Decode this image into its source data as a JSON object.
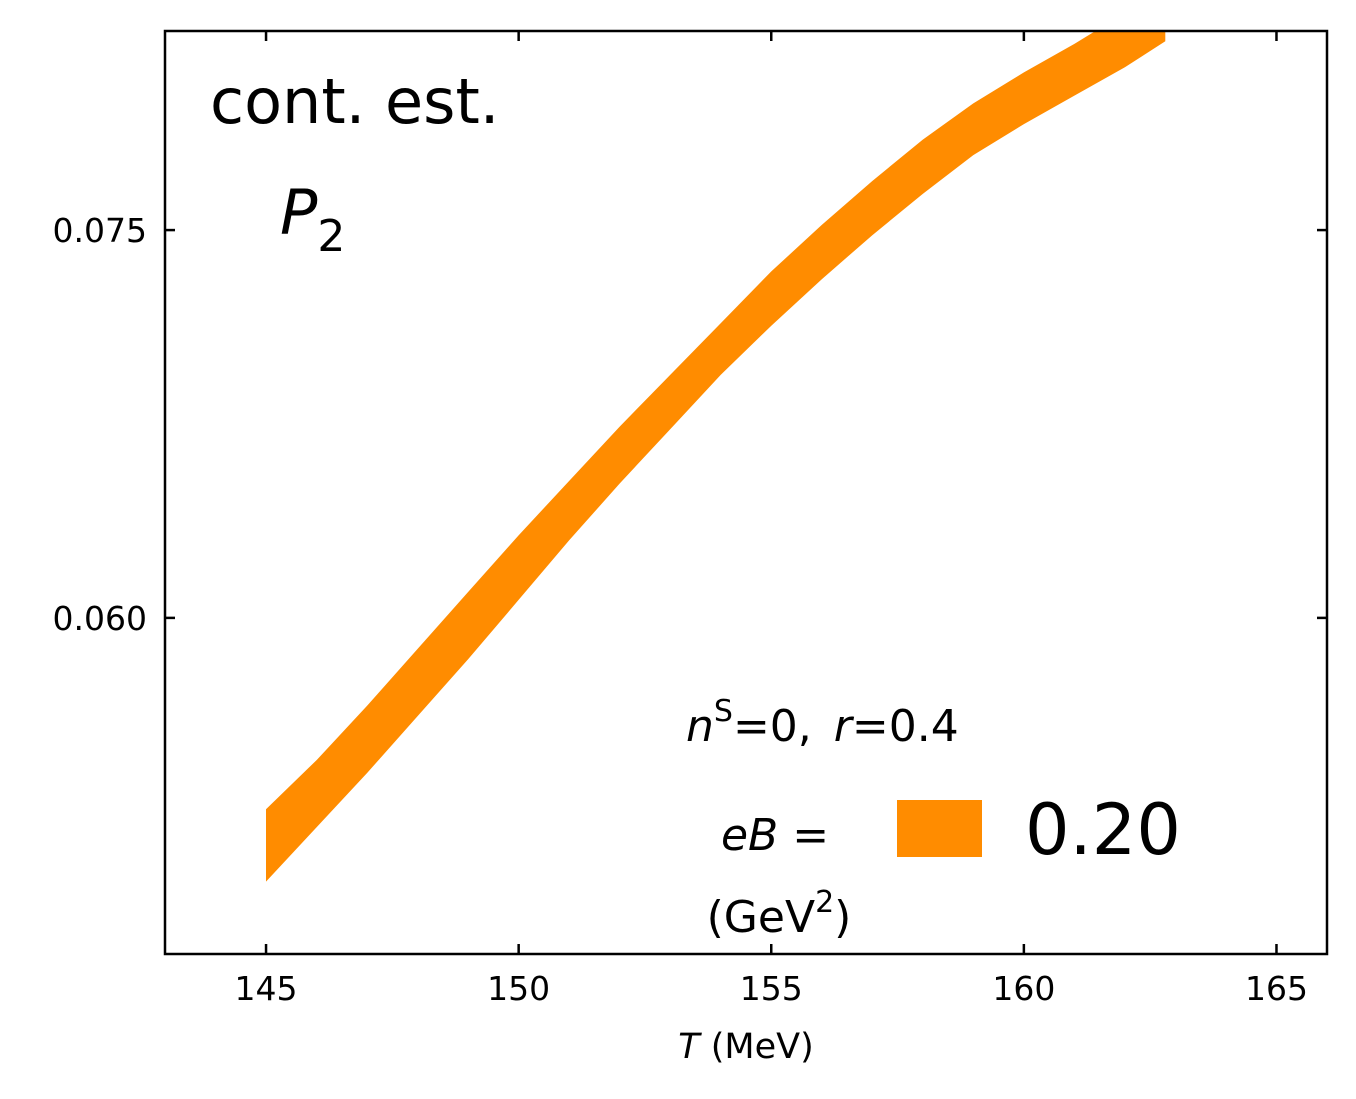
{
  "chart_data": {
    "type": "area",
    "xlabel_var": "T",
    "xlabel_unit": " (MeV)",
    "ylabel": "",
    "xlim": [
      143,
      166
    ],
    "ylim": [
      0.047,
      0.0827
    ],
    "xticks": [
      145,
      150,
      155,
      160,
      165
    ],
    "xtick_labels": [
      "145",
      "150",
      "155",
      "160",
      "165"
    ],
    "yticks": [
      0.06,
      0.075
    ],
    "ytick_labels": [
      "0.060",
      "0.075"
    ],
    "grid": false,
    "annotations": {
      "method": "cont. est.",
      "observable_main": "P",
      "observable_sub": "2",
      "conditions": {
        "n_var": "n",
        "n_sup": "S",
        "n_rest": "=0,",
        "r_var": "r",
        "r_rest": "=0.4"
      }
    },
    "legend": {
      "placement": "bottom-right",
      "title_var": "eB",
      "title_eq": " =",
      "unit_open": "(GeV",
      "unit_sup": "2",
      "unit_close": ")",
      "entry_label": "0.20"
    },
    "series": [
      {
        "name": "0.20",
        "color": "#ff8c00",
        "x": [
          145.0,
          146.0,
          147.0,
          148.0,
          149.0,
          150.0,
          151.0,
          152.0,
          153.0,
          154.0,
          155.0,
          156.0,
          157.0,
          158.0,
          159.0,
          160.0,
          161.0,
          162.0,
          162.8
        ],
        "upper": [
          0.0526,
          0.0545,
          0.0566,
          0.0588,
          0.061,
          0.0632,
          0.0653,
          0.0674,
          0.0694,
          0.0714,
          0.0734,
          0.0752,
          0.0769,
          0.0785,
          0.0799,
          0.0811,
          0.0822,
          0.0834,
          0.0845
        ],
        "lower": [
          0.0498,
          0.0519,
          0.054,
          0.0562,
          0.0584,
          0.0607,
          0.063,
          0.0652,
          0.0673,
          0.0694,
          0.0713,
          0.0731,
          0.0748,
          0.0764,
          0.0779,
          0.0791,
          0.0802,
          0.0813,
          0.0823
        ]
      }
    ]
  }
}
